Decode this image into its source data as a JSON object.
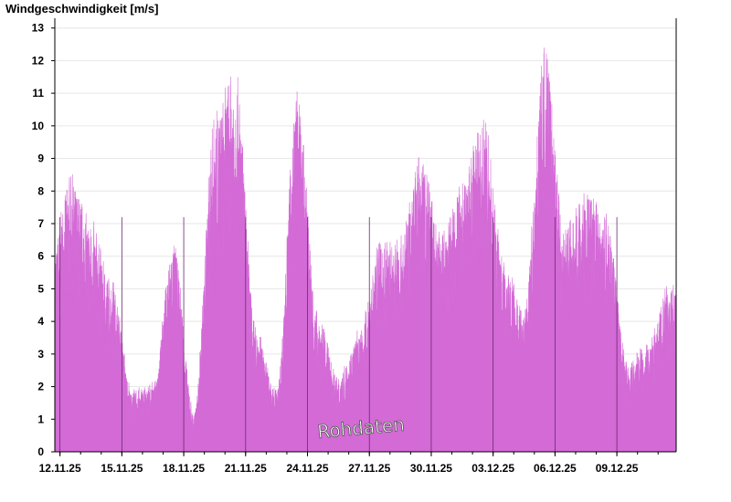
{
  "title": "Windgeschwindigkeit [m/s]",
  "watermark": "Rohdaten",
  "colors": {
    "fill": "#d36ad6",
    "background": "#ffffff",
    "grid": "#e6e6e6",
    "axis": "#000000"
  },
  "chart_data": {
    "type": "bar",
    "title": "Windgeschwindigkeit [m/s]",
    "xlabel": "",
    "ylabel": "",
    "ylim": [
      0,
      13.3
    ],
    "yticks": [
      0,
      1,
      2,
      3,
      4,
      5,
      6,
      7,
      8,
      9,
      10,
      11,
      12,
      13
    ],
    "xlim": [
      "2025-11-11 18:00",
      "2025-12-11 21:00"
    ],
    "xtick_labels": [
      "12.11.25",
      "15.11.25",
      "18.11.25",
      "21.11.25",
      "24.11.25",
      "27.11.25",
      "30.11.25",
      "03.12.25",
      "06.12.25",
      "09.12.25"
    ],
    "xtick_dates": [
      "2025-11-12",
      "2025-11-15",
      "2025-11-18",
      "2025-11-21",
      "2025-11-24",
      "2025-11-27",
      "2025-11-30",
      "2025-12-03",
      "2025-12-06",
      "2025-12-09"
    ],
    "grid": true,
    "series": [
      {
        "values_envelope_daily": {
          "2025-11-11": 5.8,
          "2025-11-12": 8.6,
          "2025-11-13": 7.2,
          "2025-11-14": 5.4,
          "2025-11-15": 2.0,
          "2025-11-16": 2.2,
          "2025-11-17": 6.6,
          "2025-11-18": 1.3,
          "2025-11-19": 10.5,
          "2025-11-20": 11.9,
          "2025-11-21": 3.9,
          "2025-11-22": 2.0,
          "2025-11-23": 11.2,
          "2025-11-24": 4.3,
          "2025-11-25": 2.4,
          "2025-11-26": 3.8,
          "2025-11-27": 6.5,
          "2025-11-28": 6.8,
          "2025-11-29": 9.3,
          "2025-11-30": 6.8,
          "2025-12-01": 8.5,
          "2025-12-02": 10.5,
          "2025-12-03": 6.2,
          "2025-12-04": 4.5,
          "2025-12-05": 12.6,
          "2025-12-06": 7.0,
          "2025-12-07": 8.1,
          "2025-12-08": 7.4,
          "2025-12-09": 2.9,
          "2025-12-10": 3.4,
          "2025-12-11": 5.2
        }
      }
    ]
  }
}
